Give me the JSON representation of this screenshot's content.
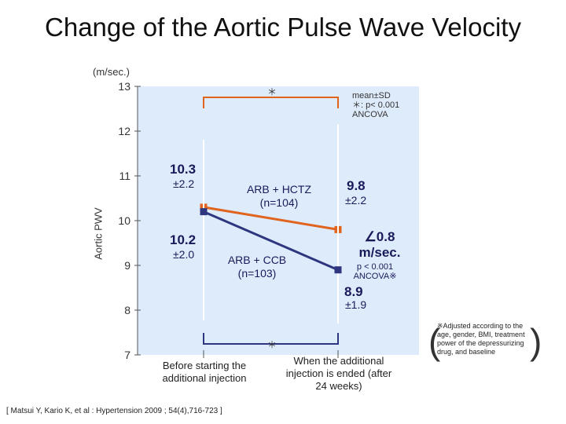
{
  "title": "Change of the Aortic Pulse Wave Velocity",
  "unit_label": "(m/sec.)",
  "legend_text": "mean±SD\n＊: p< 0.001\nANCOVA",
  "source": "[ Matsui Y, Kario K, et al : Hypertension 2009 ; 54(4),716-723 ]",
  "footnote": "※Adjusted according to the age, gender, BMI, treatment power of the depressurizing drug, and baseline",
  "annotations": {
    "start_hctz_value": "10.3",
    "start_hctz_sd": "±2.2",
    "start_ccb_value": "10.2",
    "start_ccb_sd": "±2.0",
    "end_hctz_value": "9.8",
    "end_hctz_sd": "±2.2",
    "end_ccb_value": "8.9",
    "end_ccb_sd": "±1.9",
    "difference": "∠0.8\nm/sec.",
    "p_value": "p < 0.001\nANCOVA※",
    "sig_star_top": "＊",
    "sig_star_bottom": "＊"
  },
  "colors": {
    "hctz": "#e0641e",
    "ccb": "#2e3680",
    "plot_bg": "#deebfa"
  },
  "chart_data": {
    "type": "line",
    "title": "Change of the Aortic Pulse Wave Velocity",
    "xlabel": "",
    "ylabel": "Aortic PWV",
    "categories": [
      "Before starting the additional injection",
      "When the additional injection is ended (after 24 weeks)"
    ],
    "ylim": [
      7,
      13
    ],
    "yticks": [
      7,
      8,
      9,
      10,
      11,
      12,
      13
    ],
    "series": [
      {
        "name": "ARB + HCTZ\n(n=104)",
        "values": [
          10.3,
          9.8
        ],
        "color": "#e0641e"
      },
      {
        "name": "ARB + CCB\n(n=103)",
        "values": [
          10.2,
          8.9
        ],
        "color": "#2e3680"
      }
    ],
    "grid": false
  }
}
